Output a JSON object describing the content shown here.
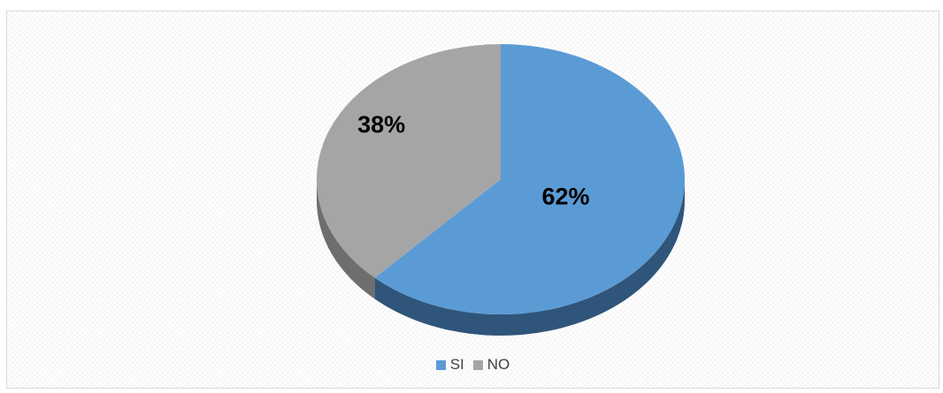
{
  "chart_data": {
    "type": "pie",
    "style": "3d",
    "categories": [
      "SI",
      "NO"
    ],
    "values": [
      62,
      38
    ],
    "labels": [
      "62%",
      "38%"
    ],
    "colors": [
      "#5b9bd5",
      "#a5a5a5"
    ],
    "side_colors": [
      "#2f557a",
      "#6e6e6e"
    ],
    "start_angle_deg": -90,
    "direction": "clockwise",
    "legend": {
      "position": "bottom",
      "entries": [
        "SI",
        "NO"
      ]
    },
    "title": "",
    "xlabel": "",
    "ylabel": ""
  }
}
